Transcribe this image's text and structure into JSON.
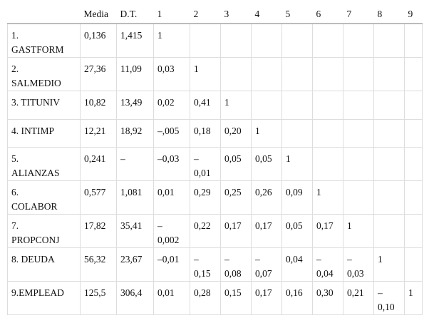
{
  "table": {
    "header": [
      "Media",
      "D.T.",
      "1",
      "2",
      "3",
      "4",
      "5",
      "6",
      "7",
      "8",
      "9"
    ],
    "rows": [
      [
        "1.\nGASTFORM",
        "0,136",
        "1,415",
        "1"
      ],
      [
        "2.\nSALMEDIO",
        "27,36",
        "11,09",
        "0,03",
        "1"
      ],
      [
        "3. TITUNIV",
        "10,82",
        "13,49",
        "0,02",
        "0,41",
        "1"
      ],
      [
        "4. INTIMP",
        "12,21",
        "18,92",
        "–,005",
        "0,18",
        "0,20",
        "1"
      ],
      [
        "5.\nALIANZAS",
        "0,241",
        "–",
        "–0,03",
        "–\n0,01",
        "0,05",
        "0,05",
        "1"
      ],
      [
        "6.\nCOLABOR",
        "0,577",
        "1,081",
        "0,01",
        "0,29",
        "0,25",
        "0,26",
        "0,09",
        "1"
      ],
      [
        "7.\nPROPCONJ",
        "17,82",
        "35,41",
        "–\n0,002",
        "0,22",
        "0,17",
        "0,17",
        "0,05",
        "0,17",
        "1"
      ],
      [
        "8. DEUDA",
        "56,32",
        "23,67",
        "–0,01",
        "–\n0,15",
        "–\n0,08",
        "–\n0,07",
        "0,04",
        "–\n0,04",
        "–\n0,03",
        "1"
      ],
      [
        "9.EMPLEAD",
        "125,5",
        "306,4",
        "0,01",
        "0,28",
        "0,15",
        "0,17",
        "0,16",
        "0,30",
        "0,21",
        "–\n0,10",
        "1"
      ]
    ]
  }
}
